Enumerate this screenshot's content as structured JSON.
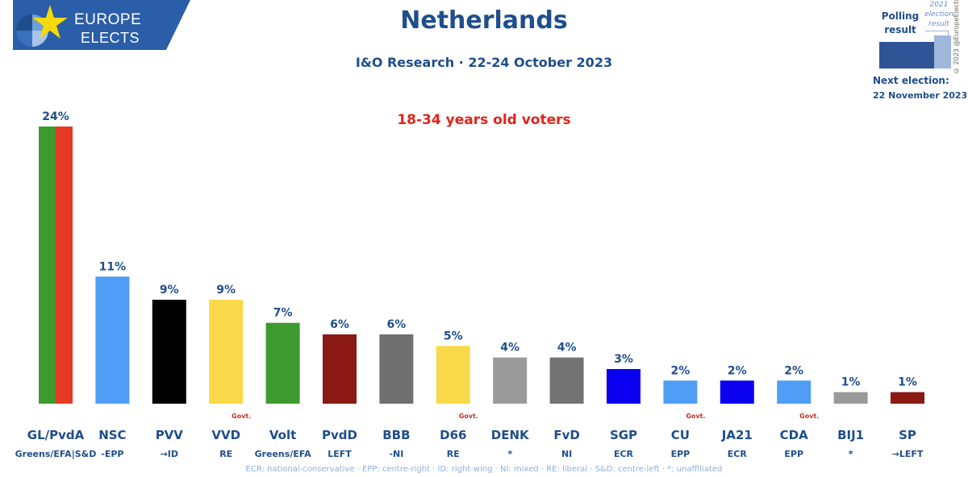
{
  "logo": {
    "line1": "EUROPE",
    "line2": "ELECTS"
  },
  "title": "Netherlands",
  "subtitle": "I&O Research · 22-24 October 2023",
  "note": "18-34 years old voters",
  "legend": {
    "polling_label": "Polling result",
    "election_label": "2021 election result",
    "next_election_label": "Next election:",
    "next_election_date": "22 November 2023",
    "copyright": "© 2023 @EuropeElects"
  },
  "footnote": "ECR: national-conservative · EPP: centre-right · ID: right-wing · NI: mixed · RE: liberal · S&D: centre-left · *: unaffiliated",
  "colors": {
    "title": "#1f4e8c",
    "note": "#e2231a"
  },
  "chart_data": {
    "type": "bar",
    "ylim": [
      0,
      24
    ],
    "categories": [
      "GL/PvdA",
      "NSC",
      "PVV",
      "VVD",
      "Volt",
      "PvdD",
      "BBB",
      "D66",
      "DENK",
      "FvD",
      "SGP",
      "CU",
      "JA21",
      "CDA",
      "BIJ1",
      "SP"
    ],
    "groups": [
      "Greens/EFA|S&D",
      "-EPP",
      "→ID",
      "RE",
      "Greens/EFA",
      "LEFT",
      "-NI",
      "RE",
      "*",
      "NI",
      "ECR",
      "EPP",
      "ECR",
      "EPP",
      "*",
      "→LEFT"
    ],
    "values": [
      24,
      11,
      9,
      9,
      7,
      6,
      6,
      5,
      4,
      4,
      3,
      2,
      2,
      2,
      1,
      1
    ],
    "value_labels": [
      "24%",
      "11%",
      "9%",
      "9%",
      "7%",
      "6%",
      "6%",
      "5%",
      "4%",
      "4%",
      "3%",
      "2%",
      "2%",
      "2%",
      "1%",
      "1%"
    ],
    "govt_label": "Govt.",
    "govt": [
      false,
      false,
      false,
      true,
      false,
      false,
      false,
      true,
      false,
      false,
      false,
      true,
      false,
      true,
      false,
      false
    ],
    "colors": [
      [
        "#3d9a2f",
        "#e53a25"
      ],
      [
        "#4f9df5"
      ],
      [
        "#000000"
      ],
      [
        "#f9d94a"
      ],
      [
        "#3d9a2f"
      ],
      [
        "#8b1a14"
      ],
      [
        "#707070"
      ],
      [
        "#f9d94a"
      ],
      [
        "#9a9a9a"
      ],
      [
        "#737373"
      ],
      [
        "#0a00f0"
      ],
      [
        "#4f9df5"
      ],
      [
        "#0a00f0"
      ],
      [
        "#4f9df5"
      ],
      [
        "#9a9a9a"
      ],
      [
        "#8b1a14"
      ]
    ]
  }
}
